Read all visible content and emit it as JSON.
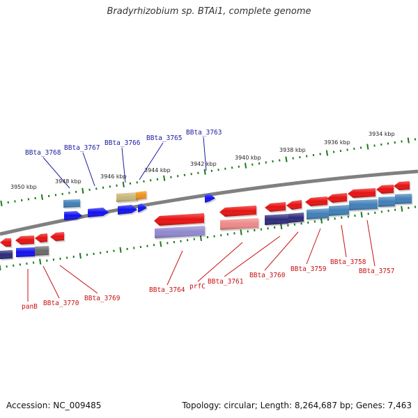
{
  "title": "Bradyrhizobium sp. BTAi1, complete genome",
  "footer": {
    "accession": "Accession: NC_009485",
    "summary": "Topology: circular; Length: 8,264,687 bp; Genes: 7,463"
  },
  "colors": {
    "backbone": "#808080",
    "tick": "#1a7a1a",
    "upper_label": "#1a1aa0",
    "lower_label": "#c81010",
    "gene_red": "#e81010",
    "gene_blue": "#1010f0",
    "gene_steel": "#3f7fb8",
    "gene_navy": "#2c2a7a",
    "gene_pink": "#ee8888",
    "gene_tan": "#c8b878",
    "gene_orange": "#f09018",
    "gene_gray": "#6a6a6a",
    "gene_lavender": "#9088d0"
  },
  "kbp_labels": [
    "3950 kbp",
    "3948 kbp",
    "3946 kbp",
    "3944 kbp",
    "3942 kbp",
    "3940 kbp",
    "3938 kbp",
    "3936 kbp",
    "3934 kbp"
  ],
  "upper_gene_labels": [
    "BBta_3768",
    "BBta_3767",
    "BBta_3766",
    "BBta_3765",
    "BBta_3763"
  ],
  "lower_gene_labels": [
    "panB",
    "BBta_3770",
    "BBta_3769",
    "BBta_3764",
    "prfC",
    "BBta_3761",
    "BBta_3760",
    "BBta_3759",
    "BBta_3758",
    "BBta_3757"
  ]
}
